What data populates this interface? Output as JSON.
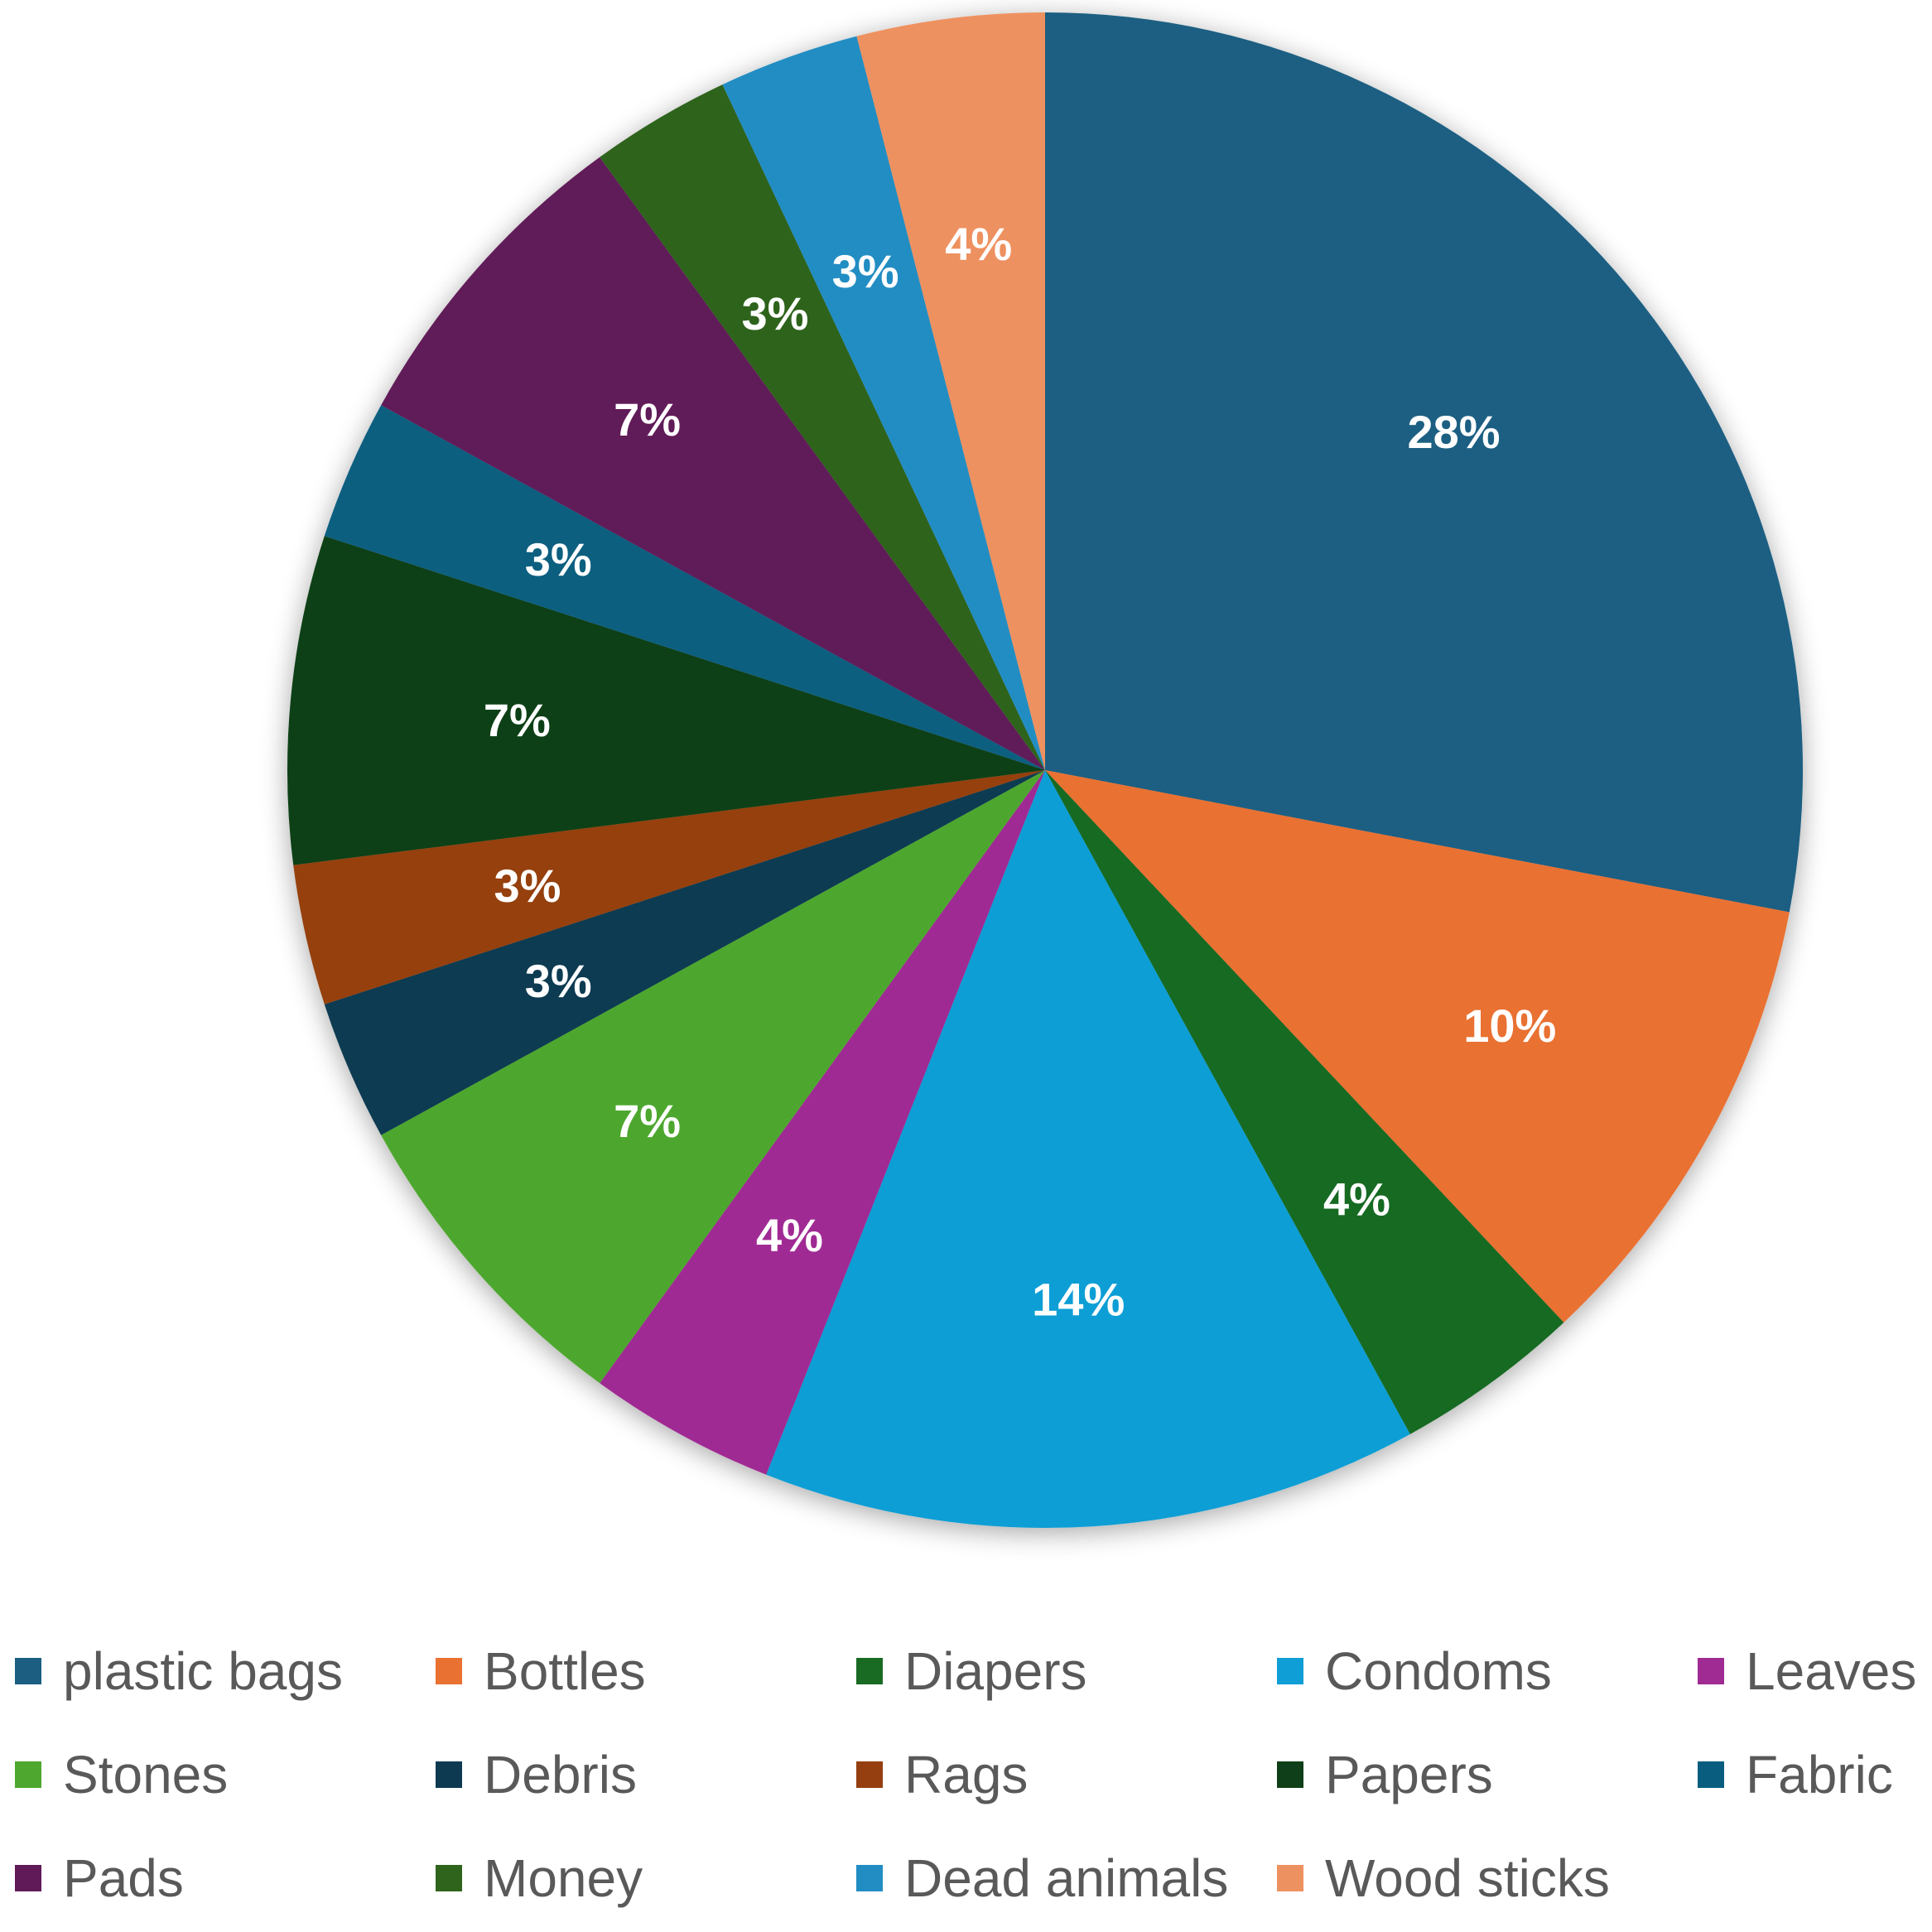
{
  "chart_data": {
    "type": "pie",
    "title": "",
    "start_angle_deg": 0,
    "direction": "clockwise",
    "legend_position": "bottom",
    "label_color": "#ffffff",
    "slices": [
      {
        "name": "plastic bags",
        "value": 28,
        "label": "28%",
        "color": "#1B5E82"
      },
      {
        "name": "Bottles",
        "value": 10,
        "label": "10%",
        "color": "#E97132"
      },
      {
        "name": "Diapers",
        "value": 4,
        "label": "4%",
        "color": "#196B24"
      },
      {
        "name": "Condoms",
        "value": 14,
        "label": "14%",
        "color": "#0F9ED5"
      },
      {
        "name": "Leaves",
        "value": 4,
        "label": "4%",
        "color": "#A02B93"
      },
      {
        "name": "Stones",
        "value": 7,
        "label": "7%",
        "color": "#4EA72E"
      },
      {
        "name": "Debris",
        "value": 3,
        "label": "3%",
        "color": "#0E3A51"
      },
      {
        "name": "Rags",
        "value": 3,
        "label": "3%",
        "color": "#953F11"
      },
      {
        "name": "Papers",
        "value": 7,
        "label": "7%",
        "color": "#0F3F18"
      },
      {
        "name": "Fabric",
        "value": 3,
        "label": "3%",
        "color": "#095E80"
      },
      {
        "name": "Pads",
        "value": 7,
        "label": "7%",
        "color": "#601A58"
      },
      {
        "name": "Money",
        "value": 3,
        "label": "3%",
        "color": "#2F641D"
      },
      {
        "name": "Dead animals",
        "value": 3,
        "label": "3%",
        "color": "#218DC3"
      },
      {
        "name": "Wood sticks",
        "value": 4,
        "label": "4%",
        "color": "#EE9160"
      }
    ]
  }
}
